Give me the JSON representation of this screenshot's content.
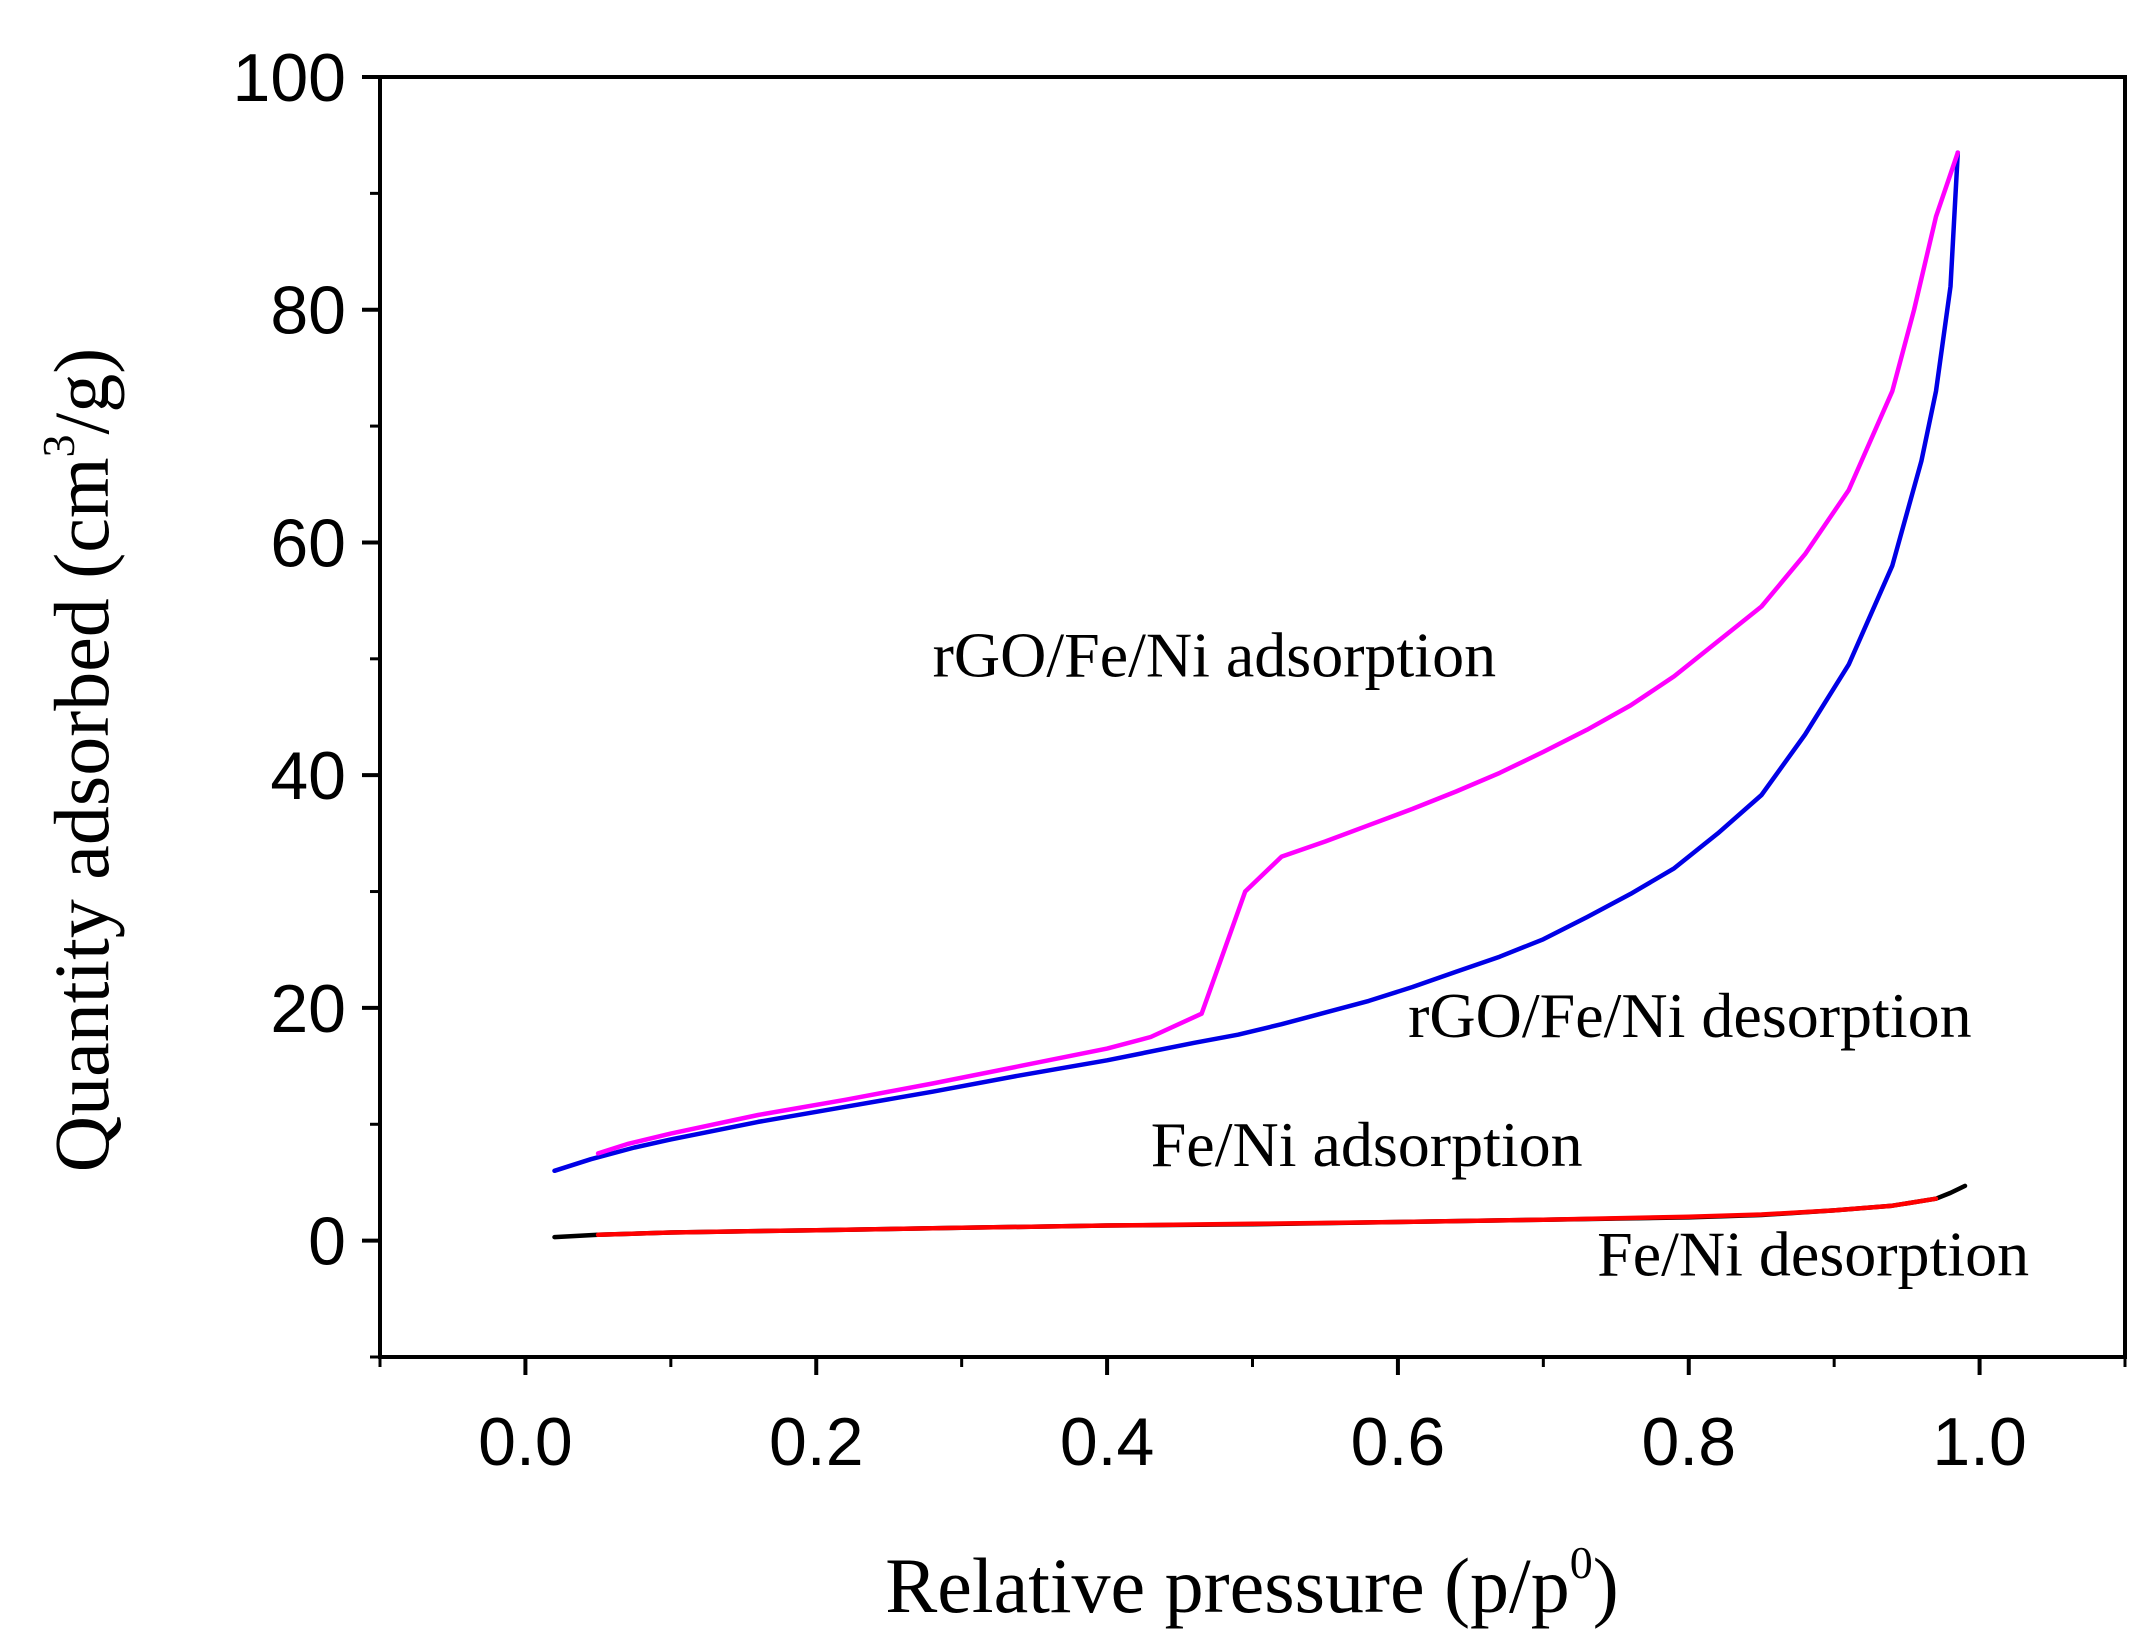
{
  "chart_data": {
    "type": "line",
    "title": "",
    "xlabel_main": "Relative pressure (p/p",
    "xlabel_sup": "0",
    "xlabel_end": ")",
    "ylabel_main": "Quantity adsorbed (cm",
    "ylabel_sup": "3",
    "ylabel_end": "/g)",
    "xlim": [
      -0.1,
      1.1
    ],
    "ylim": [
      -10,
      100
    ],
    "xticks": [
      0.0,
      0.2,
      0.4,
      0.6,
      0.8,
      1.0
    ],
    "xtick_labels": [
      "0.0",
      "0.2",
      "0.4",
      "0.6",
      "0.8",
      "1.0"
    ],
    "yticks": [
      0,
      20,
      40,
      60,
      80,
      100
    ],
    "ytick_labels": [
      "0",
      "20",
      "40",
      "60",
      "80",
      "100"
    ],
    "grid": false,
    "series": [
      {
        "name": "rGO/Fe/Ni desorption",
        "color": "#0000e6",
        "x": [
          0.02,
          0.045,
          0.075,
          0.1,
          0.16,
          0.22,
          0.28,
          0.34,
          0.4,
          0.46,
          0.49,
          0.52,
          0.55,
          0.58,
          0.61,
          0.64,
          0.67,
          0.7,
          0.73,
          0.76,
          0.79,
          0.82,
          0.85,
          0.88,
          0.91,
          0.94,
          0.96,
          0.97,
          0.98,
          0.985
        ],
        "y": [
          6.0,
          7.0,
          8.0,
          8.7,
          10.2,
          11.5,
          12.8,
          14.2,
          15.5,
          17.0,
          17.7,
          18.6,
          19.6,
          20.6,
          21.8,
          23.1,
          24.4,
          25.9,
          27.8,
          29.8,
          32.0,
          35.0,
          38.3,
          43.5,
          49.5,
          58.0,
          67.0,
          73.0,
          82.0,
          93.5
        ]
      },
      {
        "name": "rGO/Fe/Ni adsorption",
        "color": "#ff00ff",
        "x": [
          0.05,
          0.07,
          0.1,
          0.16,
          0.22,
          0.28,
          0.34,
          0.4,
          0.43,
          0.465,
          0.495,
          0.52,
          0.55,
          0.58,
          0.61,
          0.64,
          0.67,
          0.7,
          0.73,
          0.76,
          0.79,
          0.82,
          0.85,
          0.88,
          0.91,
          0.94,
          0.955,
          0.97,
          0.985
        ],
        "y": [
          7.5,
          8.3,
          9.2,
          10.8,
          12.1,
          13.5,
          15.0,
          16.5,
          17.5,
          19.5,
          30.0,
          33.0,
          34.3,
          35.7,
          37.1,
          38.6,
          40.2,
          42.0,
          43.9,
          46.0,
          48.5,
          51.5,
          54.5,
          59.0,
          64.5,
          73.0,
          80.0,
          88.0,
          93.5
        ]
      },
      {
        "name": "Fe/Ni desorption",
        "color": "#000000",
        "x": [
          0.02,
          0.05,
          0.1,
          0.2,
          0.3,
          0.4,
          0.5,
          0.6,
          0.7,
          0.8,
          0.85,
          0.9,
          0.94,
          0.97,
          0.98,
          0.99
        ],
        "y": [
          0.3,
          0.5,
          0.7,
          0.9,
          1.1,
          1.3,
          1.4,
          1.6,
          1.8,
          2.0,
          2.2,
          2.6,
          3.0,
          3.6,
          4.1,
          4.7
        ]
      },
      {
        "name": "Fe/Ni adsorption",
        "color": "#ff0000",
        "x": [
          0.05,
          0.1,
          0.2,
          0.3,
          0.4,
          0.5,
          0.6,
          0.7,
          0.8,
          0.85,
          0.9,
          0.94,
          0.97
        ],
        "y": [
          0.5,
          0.7,
          0.9,
          1.1,
          1.3,
          1.45,
          1.6,
          1.8,
          2.05,
          2.25,
          2.6,
          3.0,
          3.6
        ]
      }
    ],
    "annotations": [
      {
        "id": "rgo-adsorption",
        "text": "rGO/Fe/Ni adsorption",
        "x": 0.28,
        "y": 48.5
      },
      {
        "id": "rgo-desorption",
        "text": "rGO/Fe/Ni desorption",
        "x": 0.607,
        "y": 17.5
      },
      {
        "id": "feni-adsorption",
        "text": "Fe/Ni adsorption",
        "x": 0.43,
        "y": 6.4
      },
      {
        "id": "feni-desorption",
        "text": "Fe/Ni desorption",
        "x": 0.737,
        "y": -3.0
      }
    ]
  }
}
